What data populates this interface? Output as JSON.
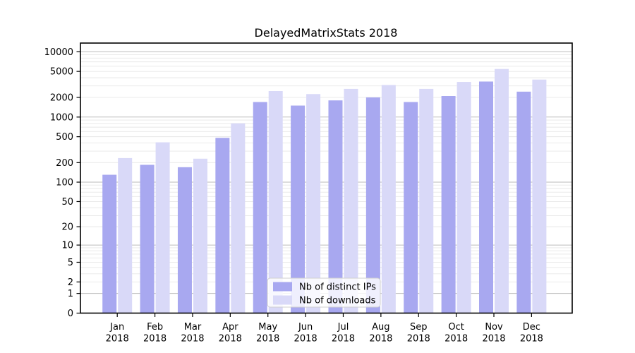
{
  "chart_data": {
    "type": "bar",
    "title": "DelayedMatrixStats 2018",
    "categories": [
      "Jan 2018",
      "Feb 2018",
      "Mar 2018",
      "Apr 2018",
      "May 2018",
      "Jun 2018",
      "Jul 2018",
      "Aug 2018",
      "Sep 2018",
      "Oct 2018",
      "Nov 2018",
      "Dec 2018"
    ],
    "series": [
      {
        "name": "Nb of distinct IPs",
        "color": "#a8a8f0",
        "values": [
          130,
          185,
          170,
          480,
          1700,
          1500,
          1800,
          2000,
          1700,
          2100,
          3500,
          2450
        ]
      },
      {
        "name": "Nb of downloads",
        "color": "#d9d9f8",
        "values": [
          235,
          410,
          230,
          800,
          2500,
          2250,
          2700,
          3100,
          2700,
          3450,
          5450,
          3750
        ]
      }
    ],
    "xlabel": "",
    "ylabel": "",
    "y_scale": "log10(1+v)",
    "y_ticks": [
      0,
      1,
      2,
      5,
      10,
      20,
      50,
      100,
      200,
      500,
      1000,
      2000,
      5000,
      10000
    ],
    "ylim": [
      0,
      13500
    ],
    "grid": "horizontal major (decades) + minor (2-9 per decade)",
    "legend_position": "inside lower-center",
    "bar_grouping": "2 bars per month, IPs left, downloads right"
  }
}
